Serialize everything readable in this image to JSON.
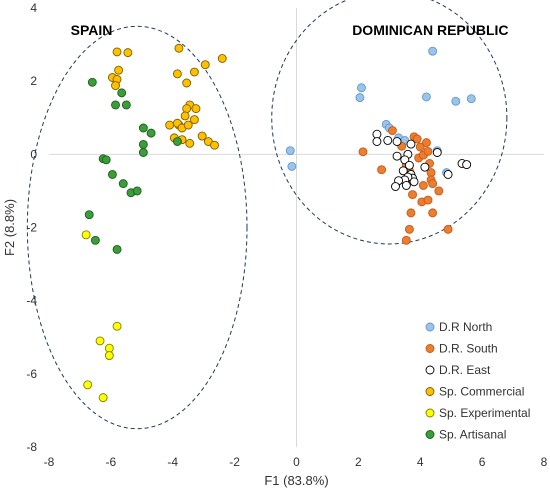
{
  "chart_data": {
    "type": "scatter",
    "title": "",
    "xlabel": "F1 (83.8%)",
    "ylabel": "F2 (8.8%)",
    "xlim": [
      -8,
      8
    ],
    "ylim": [
      -8,
      4
    ],
    "xticks": [
      -8,
      -6,
      -4,
      -2,
      0,
      2,
      4,
      6,
      8
    ],
    "yticks": [
      -8,
      -6,
      -4,
      -2,
      0,
      2,
      4
    ],
    "grid": false,
    "legend_position": "bottom-right",
    "region_labels": [
      {
        "text": "SPAIN",
        "x": -7.3,
        "y": 3.4
      },
      {
        "text": "DOMINICAN REPUBLIC",
        "x": 1.8,
        "y": 3.4
      }
    ],
    "ellipses": [
      {
        "cx": -5.15,
        "cy": -2.0,
        "rx": 3.55,
        "ry": 5.5
      },
      {
        "cx": 3.0,
        "cy": 1.0,
        "rx": 3.8,
        "ry": 3.45
      }
    ],
    "series": [
      {
        "name": "D.R North",
        "fill": "#9dc3e6",
        "stroke": "#5b9bd5",
        "points": [
          [
            4.4,
            2.82
          ],
          [
            2.1,
            1.82
          ],
          [
            2.05,
            1.55
          ],
          [
            4.2,
            1.57
          ],
          [
            5.15,
            1.45
          ],
          [
            5.65,
            1.52
          ],
          [
            -0.2,
            0.1
          ],
          [
            -0.15,
            -0.33
          ],
          [
            2.9,
            0.82
          ],
          [
            3.0,
            0.72
          ],
          [
            3.3,
            0.45
          ],
          [
            3.5,
            0.38
          ],
          [
            4.55,
            0.1
          ],
          [
            4.85,
            -0.5
          ]
        ]
      },
      {
        "name": "D.R. South",
        "fill": "#ed7d31",
        "stroke": "#c55a11",
        "points": [
          [
            2.15,
            0.07
          ],
          [
            2.75,
            -0.42
          ],
          [
            3.1,
            0.65
          ],
          [
            3.4,
            0.22
          ],
          [
            3.55,
            -0.3
          ],
          [
            3.65,
            -0.45
          ],
          [
            3.6,
            -0.75
          ],
          [
            3.8,
            0.48
          ],
          [
            3.9,
            0.42
          ],
          [
            3.95,
            -0.1
          ],
          [
            4.0,
            0.2
          ],
          [
            4.1,
            -0.02
          ],
          [
            4.2,
            0.32
          ],
          [
            4.25,
            0.08
          ],
          [
            4.3,
            -0.25
          ],
          [
            4.35,
            -0.5
          ],
          [
            4.35,
            -0.7
          ],
          [
            4.4,
            -0.8
          ],
          [
            4.1,
            -0.85
          ],
          [
            4.05,
            -1.3
          ],
          [
            3.75,
            -1.1
          ],
          [
            3.7,
            -1.6
          ],
          [
            3.65,
            -2.05
          ],
          [
            3.55,
            -2.35
          ],
          [
            4.25,
            -1.25
          ],
          [
            4.4,
            -1.6
          ],
          [
            4.9,
            -2.05
          ],
          [
            4.6,
            -1.0
          ]
        ]
      },
      {
        "name": "D.R. East",
        "fill": "#ffffff",
        "stroke": "#000000",
        "points": [
          [
            2.6,
            0.55
          ],
          [
            2.6,
            0.35
          ],
          [
            2.95,
            0.38
          ],
          [
            3.25,
            0.35
          ],
          [
            3.7,
            0.28
          ],
          [
            3.6,
            0.0
          ],
          [
            3.25,
            -0.05
          ],
          [
            3.5,
            -0.15
          ],
          [
            3.45,
            -0.45
          ],
          [
            3.65,
            -0.3
          ],
          [
            3.7,
            -0.55
          ],
          [
            3.75,
            -0.65
          ],
          [
            3.8,
            -0.75
          ],
          [
            3.6,
            -0.62
          ],
          [
            3.5,
            -0.7
          ],
          [
            3.3,
            -0.72
          ],
          [
            3.55,
            -0.85
          ],
          [
            3.2,
            -0.88
          ],
          [
            4.15,
            -0.35
          ],
          [
            4.55,
            0.05
          ],
          [
            5.35,
            -0.25
          ],
          [
            5.5,
            -0.28
          ],
          [
            4.9,
            -0.55
          ]
        ]
      },
      {
        "name": "Sp. Commercial",
        "fill": "#ffc000",
        "stroke": "#7f6000",
        "points": [
          [
            -5.8,
            2.8
          ],
          [
            -5.45,
            2.78
          ],
          [
            -3.8,
            2.9
          ],
          [
            -3.3,
            2.25
          ],
          [
            -2.95,
            2.45
          ],
          [
            -2.4,
            2.62
          ],
          [
            -5.95,
            2.1
          ],
          [
            -5.8,
            2.05
          ],
          [
            -5.85,
            1.88
          ],
          [
            -5.75,
            2.3
          ],
          [
            -3.85,
            2.2
          ],
          [
            -3.55,
            1.95
          ],
          [
            -3.45,
            1.35
          ],
          [
            -3.55,
            1.25
          ],
          [
            -3.25,
            1.25
          ],
          [
            -3.8,
            0.8
          ],
          [
            -3.85,
            0.85
          ],
          [
            -3.7,
            0.72
          ],
          [
            -3.6,
            1.05
          ],
          [
            -3.3,
            0.95
          ],
          [
            -3.45,
            0.3
          ],
          [
            -3.7,
            0.4
          ],
          [
            -4.1,
            0.8
          ],
          [
            -3.5,
            0.8
          ],
          [
            -3.05,
            0.5
          ],
          [
            -2.85,
            0.35
          ],
          [
            -2.65,
            0.25
          ],
          [
            -3.95,
            0.45
          ]
        ]
      },
      {
        "name": "Sp. Experimental",
        "fill": "#ffff00",
        "stroke": "#7f7f00",
        "points": [
          [
            -6.8,
            -2.2
          ],
          [
            -5.8,
            -4.7
          ],
          [
            -6.35,
            -5.1
          ],
          [
            -6.05,
            -5.3
          ],
          [
            -6.05,
            -5.5
          ],
          [
            -6.75,
            -6.3
          ],
          [
            -6.25,
            -6.65
          ]
        ]
      },
      {
        "name": "Sp. Artisanal",
        "fill": "#3a9e3a",
        "stroke": "#1e5e1e",
        "points": [
          [
            -6.6,
            1.97
          ],
          [
            -5.65,
            1.68
          ],
          [
            -5.85,
            1.35
          ],
          [
            -5.5,
            1.35
          ],
          [
            -4.95,
            0.72
          ],
          [
            -4.7,
            0.58
          ],
          [
            -4.95,
            0.27
          ],
          [
            -4.95,
            0.05
          ],
          [
            -3.85,
            0.35
          ],
          [
            -6.25,
            -0.12
          ],
          [
            -6.15,
            -0.15
          ],
          [
            -5.95,
            -0.55
          ],
          [
            -5.6,
            -0.8
          ],
          [
            -5.35,
            -1.05
          ],
          [
            -5.15,
            -1.0
          ],
          [
            -6.7,
            -1.65
          ],
          [
            -6.5,
            -2.35
          ],
          [
            -5.8,
            -2.6
          ]
        ]
      }
    ]
  }
}
